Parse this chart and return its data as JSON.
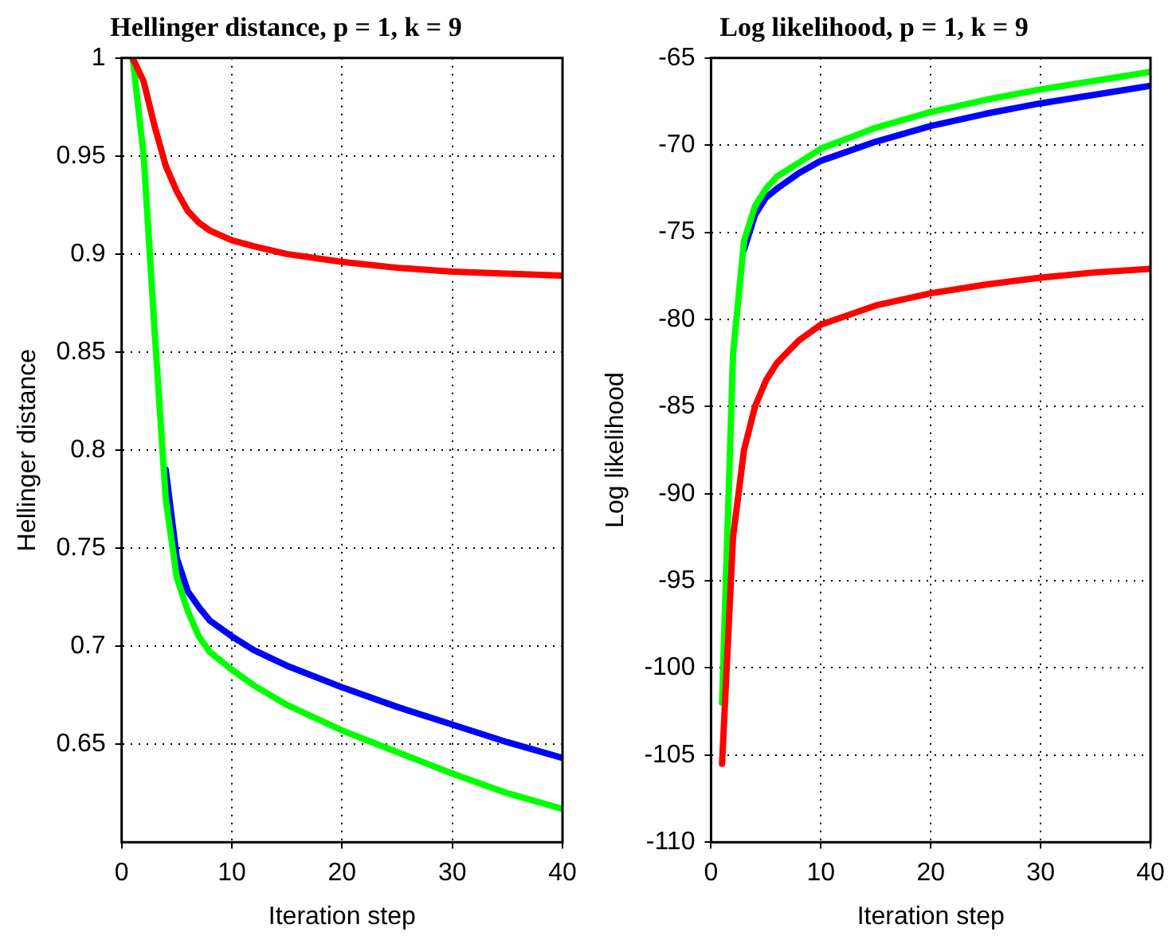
{
  "chart_data": [
    {
      "type": "line",
      "title": "Hellinger distance, p = 1, k = 9",
      "xlabel": "Iteration step",
      "ylabel": "Hellinger distance",
      "xlim": [
        0,
        40
      ],
      "xticks": [
        0,
        10,
        20,
        30,
        40
      ],
      "ylim": [
        0.6,
        1
      ],
      "yticks": [
        0.65,
        0.7,
        0.75,
        0.8,
        0.85,
        0.9,
        0.95,
        1
      ],
      "grid": true,
      "legend": false,
      "marker": "none",
      "line_style": "solid",
      "series": [
        {
          "color": "#0000ff",
          "x": [
            4,
            5,
            6,
            7,
            8,
            10,
            12,
            15,
            20,
            25,
            30,
            35,
            40
          ],
          "values": [
            0.79,
            0.745,
            0.728,
            0.72,
            0.713,
            0.705,
            0.698,
            0.69,
            0.679,
            0.669,
            0.66,
            0.651,
            0.643
          ]
        },
        {
          "color": "#00ff00",
          "x": [
            1,
            2,
            3,
            4,
            5,
            6,
            7,
            8,
            10,
            12,
            15,
            20,
            25,
            30,
            35,
            40
          ],
          "values": [
            1.0,
            0.95,
            0.86,
            0.775,
            0.735,
            0.718,
            0.705,
            0.697,
            0.688,
            0.68,
            0.67,
            0.657,
            0.646,
            0.635,
            0.625,
            0.617
          ]
        },
        {
          "color": "#ff0000",
          "x": [
            1,
            2,
            3,
            4,
            5,
            6,
            7,
            8,
            10,
            12,
            15,
            20,
            25,
            30,
            35,
            40
          ],
          "values": [
            1.0,
            0.988,
            0.965,
            0.945,
            0.932,
            0.922,
            0.916,
            0.912,
            0.907,
            0.904,
            0.9,
            0.896,
            0.893,
            0.891,
            0.89,
            0.889
          ]
        }
      ]
    },
    {
      "type": "line",
      "title": "Log likelihood, p = 1, k = 9",
      "xlabel": "Iteration step",
      "ylabel": "Log likelihood",
      "xlim": [
        0,
        40
      ],
      "xticks": [
        0,
        10,
        20,
        30,
        40
      ],
      "ylim": [
        -110,
        -65
      ],
      "yticks": [
        -110,
        -105,
        -100,
        -95,
        -90,
        -85,
        -80,
        -75,
        -70,
        -65
      ],
      "grid": true,
      "legend": false,
      "marker": "none",
      "line_style": "solid",
      "series": [
        {
          "color": "#0000ff",
          "x": [
            3,
            4,
            5,
            6,
            8,
            10,
            15,
            20,
            25,
            30,
            35,
            40
          ],
          "values": [
            -76,
            -74,
            -73,
            -72.5,
            -71.6,
            -70.9,
            -69.8,
            -68.9,
            -68.2,
            -67.6,
            -67.1,
            -66.6
          ]
        },
        {
          "color": "#00ff00",
          "x": [
            1,
            2,
            3,
            4,
            5,
            6,
            8,
            10,
            15,
            20,
            25,
            30,
            35,
            40
          ],
          "values": [
            -102,
            -82,
            -75.5,
            -73.5,
            -72.5,
            -71.8,
            -71,
            -70.2,
            -69,
            -68.1,
            -67.4,
            -66.8,
            -66.3,
            -65.8
          ]
        },
        {
          "color": "#ff0000",
          "x": [
            1,
            2,
            3,
            4,
            5,
            6,
            8,
            10,
            15,
            20,
            25,
            30,
            35,
            40
          ],
          "values": [
            -105.5,
            -92.5,
            -87.5,
            -85,
            -83.5,
            -82.5,
            -81.2,
            -80.3,
            -79.2,
            -78.5,
            -78,
            -77.6,
            -77.3,
            -77.1
          ]
        }
      ]
    }
  ]
}
